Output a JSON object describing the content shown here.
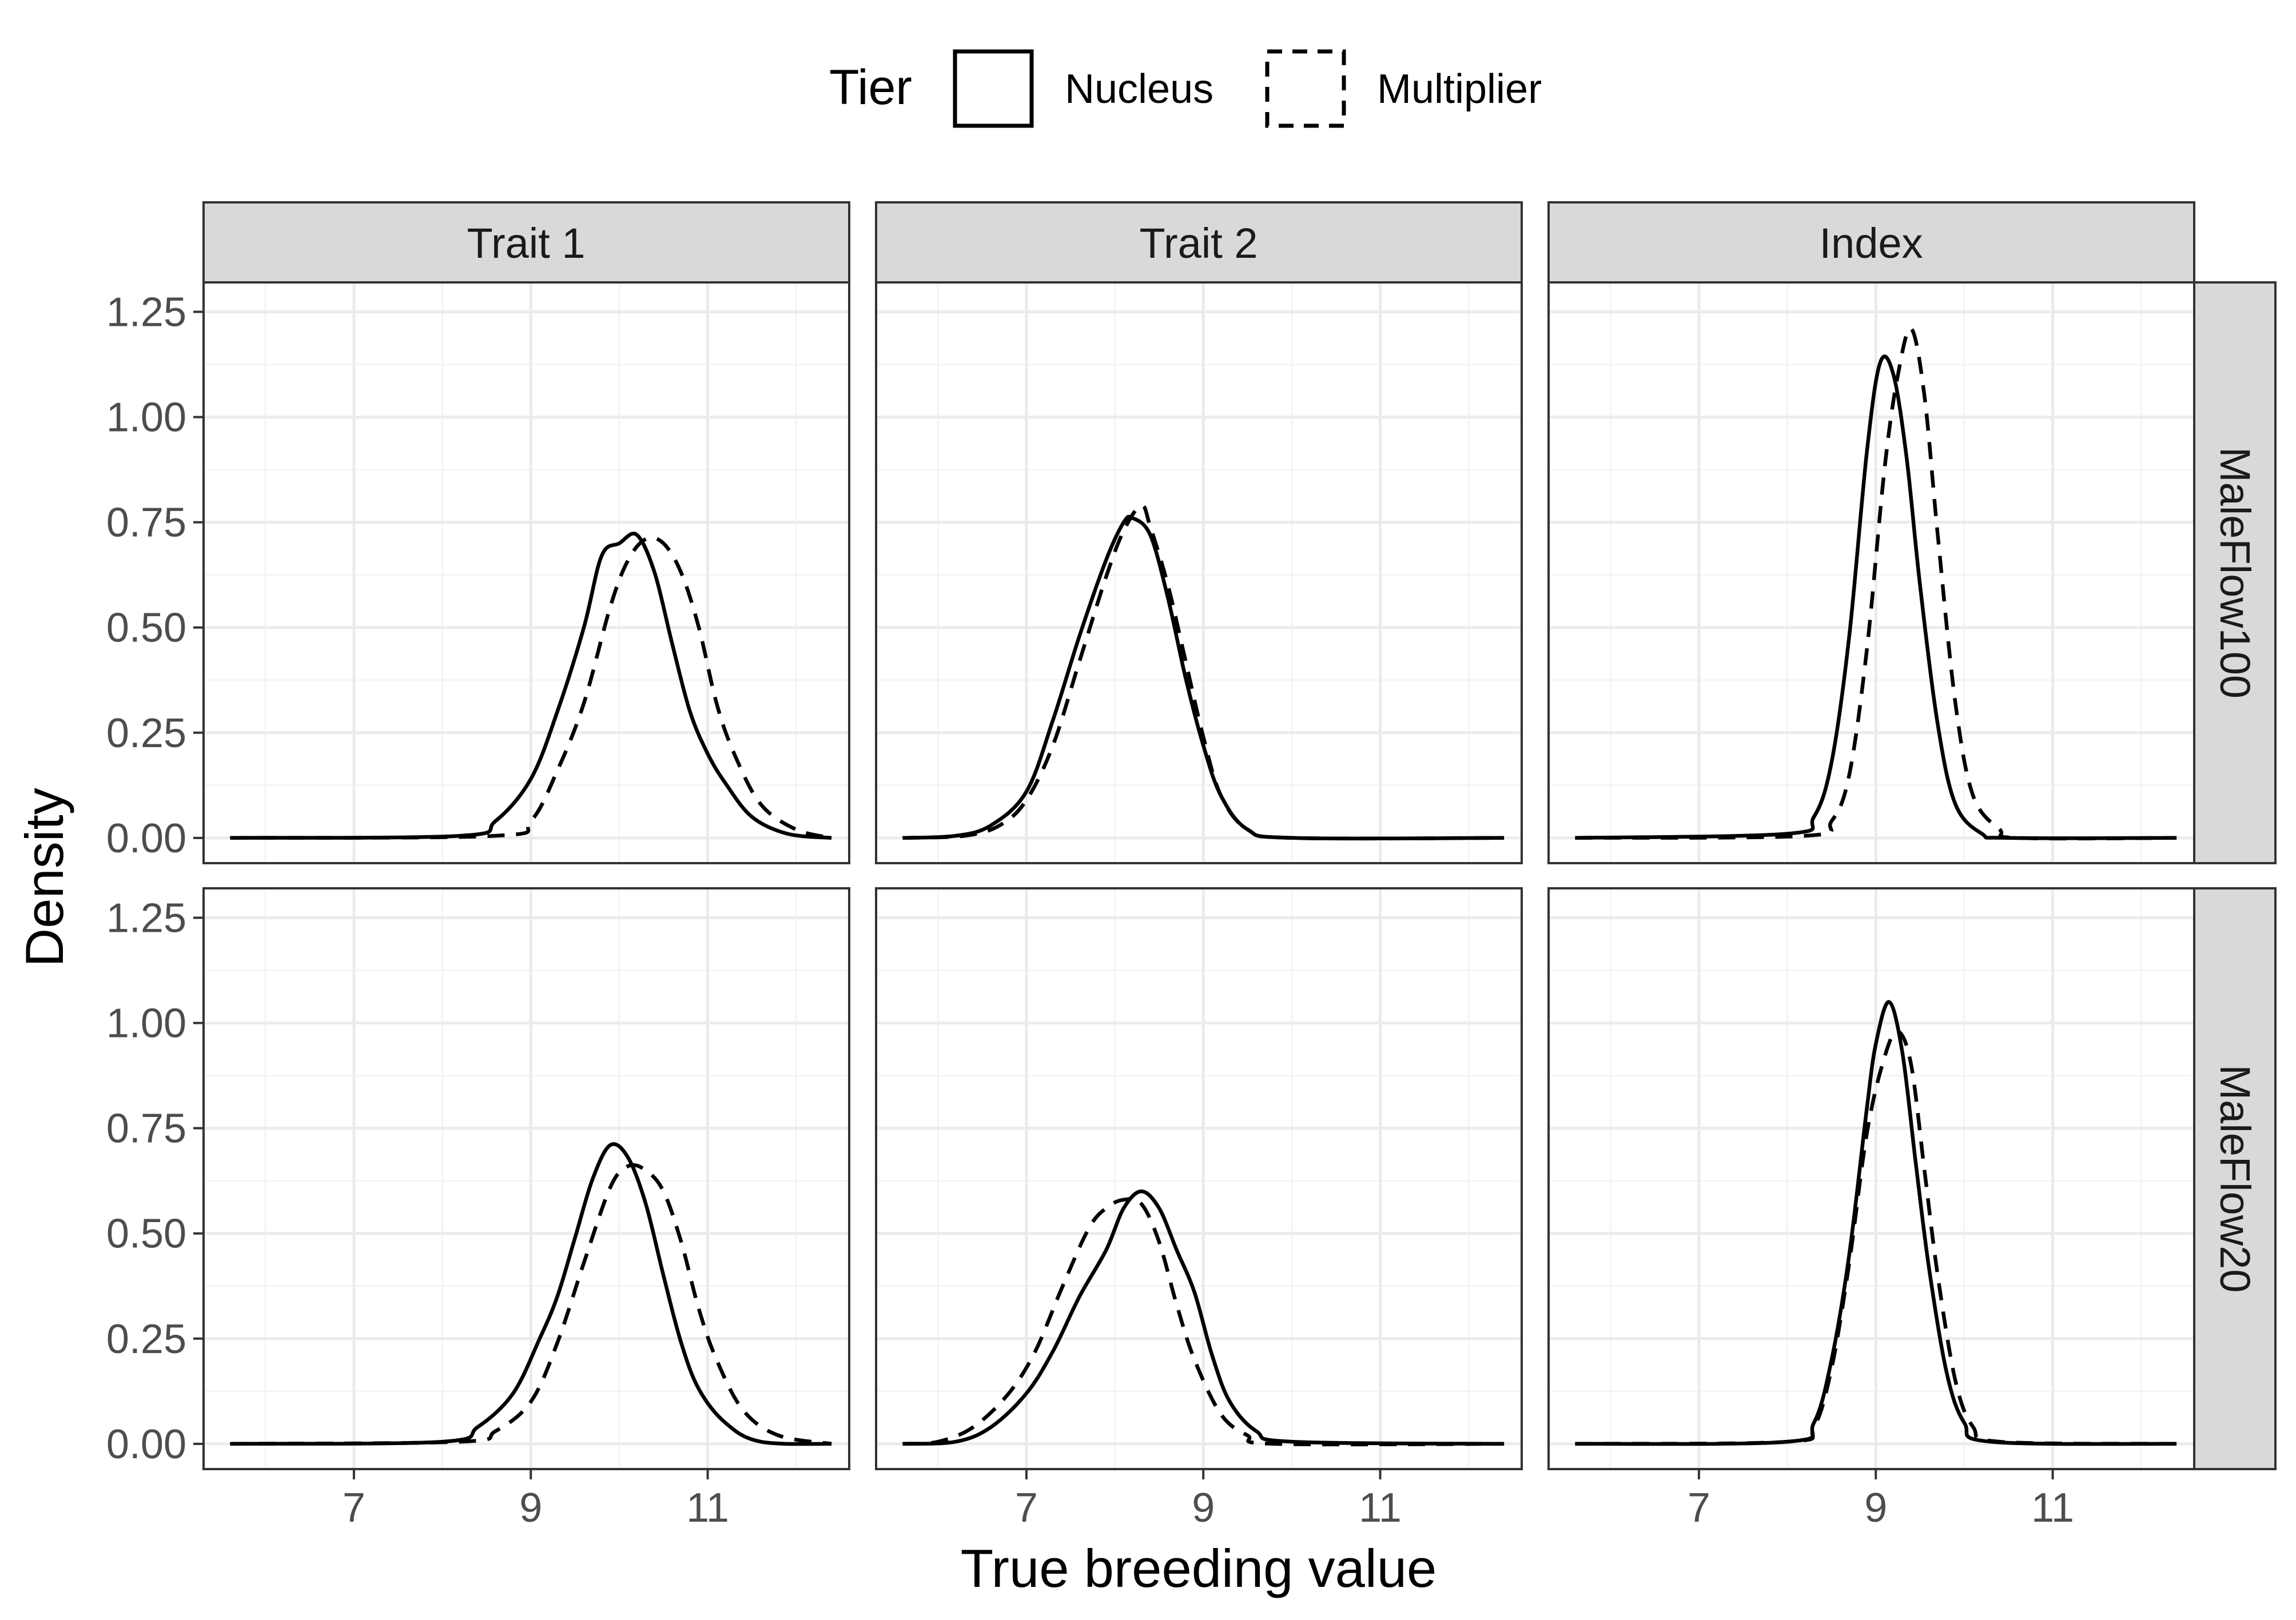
{
  "chart_data": {
    "type": "line",
    "subtype": "faceted density curves",
    "xlabel": "True breeding value",
    "ylabel": "Density",
    "x_ticks": [
      7,
      9,
      11
    ],
    "y_ticks": [
      "0.00",
      "0.25",
      "0.50",
      "0.75",
      "1.00",
      "1.25"
    ],
    "xlim": [
      5.3,
      12.6
    ],
    "ylim": [
      -0.06,
      1.32
    ],
    "grid": true,
    "legend": {
      "title": "Tier",
      "position": "top",
      "entries": [
        {
          "label": "Nucleus",
          "linetype": "solid"
        },
        {
          "label": "Multiplier",
          "linetype": "dashed"
        }
      ]
    },
    "facet_columns": [
      "Trait 1",
      "Trait 2",
      "Index"
    ],
    "facet_rows": [
      "MaleFlow100",
      "MaleFlow20"
    ],
    "panels": [
      {
        "row": "MaleFlow100",
        "column": "Trait 1",
        "series": [
          {
            "name": "Nucleus",
            "x": [
              5.6,
              8.2,
              8.6,
              9.0,
              9.3,
              9.6,
              9.8,
              10.0,
              10.2,
              10.4,
              10.6,
              10.8,
              11.0,
              11.2,
              11.5,
              11.9,
              12.4
            ],
            "y": [
              0,
              0.005,
              0.04,
              0.14,
              0.3,
              0.5,
              0.67,
              0.7,
              0.72,
              0.63,
              0.46,
              0.3,
              0.2,
              0.13,
              0.05,
              0.01,
              0
            ]
          },
          {
            "name": "Multiplier",
            "x": [
              5.6,
              8.6,
              9.0,
              9.3,
              9.6,
              9.9,
              10.1,
              10.3,
              10.5,
              10.7,
              10.9,
              11.1,
              11.3,
              11.6,
              12.0,
              12.4
            ],
            "y": [
              0,
              0.005,
              0.04,
              0.16,
              0.32,
              0.55,
              0.66,
              0.71,
              0.7,
              0.63,
              0.5,
              0.32,
              0.2,
              0.08,
              0.02,
              0
            ]
          }
        ]
      },
      {
        "row": "MaleFlow100",
        "column": "Trait 2",
        "series": [
          {
            "name": "Nucleus",
            "x": [
              5.6,
              6.2,
              6.6,
              7.0,
              7.3,
              7.6,
              7.9,
              8.1,
              8.2,
              8.4,
              8.6,
              8.8,
              9.0,
              9.2,
              9.5,
              10.0,
              12.4
            ],
            "y": [
              0,
              0.005,
              0.03,
              0.11,
              0.28,
              0.48,
              0.66,
              0.75,
              0.76,
              0.72,
              0.57,
              0.38,
              0.22,
              0.1,
              0.02,
              0,
              0
            ]
          },
          {
            "name": "Multiplier",
            "x": [
              5.6,
              6.3,
              6.7,
              7.0,
              7.3,
              7.6,
              7.9,
              8.1,
              8.3,
              8.4,
              8.6,
              8.8,
              9.0,
              9.2,
              9.5,
              10.0,
              12.4
            ],
            "y": [
              0,
              0.005,
              0.03,
              0.09,
              0.22,
              0.42,
              0.62,
              0.73,
              0.79,
              0.74,
              0.6,
              0.42,
              0.24,
              0.1,
              0.02,
              0,
              0
            ]
          }
        ]
      },
      {
        "row": "MaleFlow100",
        "column": "Index",
        "series": [
          {
            "name": "Nucleus",
            "x": [
              5.6,
              8.0,
              8.3,
              8.5,
              8.7,
              8.9,
              9.05,
              9.2,
              9.35,
              9.5,
              9.7,
              9.9,
              10.2,
              10.5,
              12.4
            ],
            "y": [
              0,
              0.01,
              0.05,
              0.18,
              0.48,
              0.92,
              1.13,
              1.1,
              0.9,
              0.6,
              0.27,
              0.08,
              0.01,
              0,
              0
            ]
          },
          {
            "name": "Multiplier",
            "x": [
              5.6,
              8.2,
              8.5,
              8.7,
              8.9,
              9.1,
              9.25,
              9.4,
              9.55,
              9.7,
              9.9,
              10.1,
              10.4,
              10.6,
              12.4
            ],
            "y": [
              0,
              0.005,
              0.04,
              0.15,
              0.45,
              0.88,
              1.1,
              1.21,
              1.05,
              0.72,
              0.32,
              0.1,
              0.02,
              0,
              0
            ]
          }
        ]
      },
      {
        "row": "MaleFlow20",
        "column": "Trait 1",
        "series": [
          {
            "name": "Nucleus",
            "x": [
              5.6,
              8.0,
              8.4,
              8.8,
              9.1,
              9.3,
              9.5,
              9.7,
              9.9,
              10.1,
              10.3,
              10.5,
              10.7,
              10.9,
              11.2,
              11.6,
              12.4
            ],
            "y": [
              0,
              0.005,
              0.04,
              0.12,
              0.25,
              0.35,
              0.49,
              0.63,
              0.71,
              0.68,
              0.57,
              0.4,
              0.24,
              0.13,
              0.05,
              0.005,
              0
            ]
          },
          {
            "name": "Multiplier",
            "x": [
              5.6,
              8.2,
              8.6,
              9.0,
              9.3,
              9.6,
              9.9,
              10.1,
              10.3,
              10.5,
              10.7,
              10.9,
              11.1,
              11.4,
              11.8,
              12.4
            ],
            "y": [
              0,
              0.005,
              0.03,
              0.1,
              0.24,
              0.43,
              0.61,
              0.66,
              0.65,
              0.6,
              0.48,
              0.32,
              0.2,
              0.08,
              0.02,
              0
            ]
          }
        ]
      },
      {
        "row": "MaleFlow20",
        "column": "Trait 2",
        "series": [
          {
            "name": "Nucleus",
            "x": [
              5.6,
              6.2,
              6.6,
              7.0,
              7.3,
              7.6,
              7.9,
              8.1,
              8.3,
              8.5,
              8.7,
              8.9,
              9.1,
              9.3,
              9.6,
              10.0,
              12.4
            ],
            "y": [
              0,
              0.005,
              0.04,
              0.12,
              0.22,
              0.35,
              0.46,
              0.56,
              0.6,
              0.56,
              0.46,
              0.36,
              0.21,
              0.1,
              0.03,
              0.005,
              0
            ]
          },
          {
            "name": "Multiplier",
            "x": [
              5.6,
              6.0,
              6.4,
              6.8,
              7.1,
              7.4,
              7.7,
              7.9,
              8.1,
              8.3,
              8.5,
              8.7,
              8.9,
              9.2,
              9.5,
              9.8,
              12.4
            ],
            "y": [
              0,
              0.005,
              0.04,
              0.12,
              0.22,
              0.37,
              0.51,
              0.56,
              0.58,
              0.57,
              0.48,
              0.33,
              0.2,
              0.07,
              0.02,
              0,
              0
            ]
          }
        ]
      },
      {
        "row": "MaleFlow20",
        "column": "Index",
        "series": [
          {
            "name": "Nucleus",
            "x": [
              5.6,
              8.0,
              8.3,
              8.5,
              8.7,
              8.9,
              9.0,
              9.15,
              9.3,
              9.45,
              9.6,
              9.8,
              10.0,
              10.3,
              12.4
            ],
            "y": [
              0,
              0.005,
              0.05,
              0.2,
              0.45,
              0.8,
              0.95,
              1.05,
              0.93,
              0.67,
              0.42,
              0.17,
              0.05,
              0.005,
              0
            ]
          },
          {
            "name": "Multiplier",
            "x": [
              5.6,
              8.0,
              8.3,
              8.5,
              8.7,
              8.9,
              9.1,
              9.25,
              9.4,
              9.55,
              9.7,
              9.9,
              10.1,
              10.4,
              12.4
            ],
            "y": [
              0,
              0.005,
              0.04,
              0.18,
              0.43,
              0.74,
              0.92,
              0.98,
              0.9,
              0.65,
              0.4,
              0.15,
              0.04,
              0.005,
              0
            ]
          }
        ]
      }
    ]
  },
  "colors": {
    "line": "#000000",
    "grid_major": "#ebebeb",
    "grid_minor": "#f4f4f4",
    "strip_fill": "#d9d9d9",
    "panel_border": "#333333",
    "tick_label": "#4d4d4d",
    "text": "#000000"
  }
}
